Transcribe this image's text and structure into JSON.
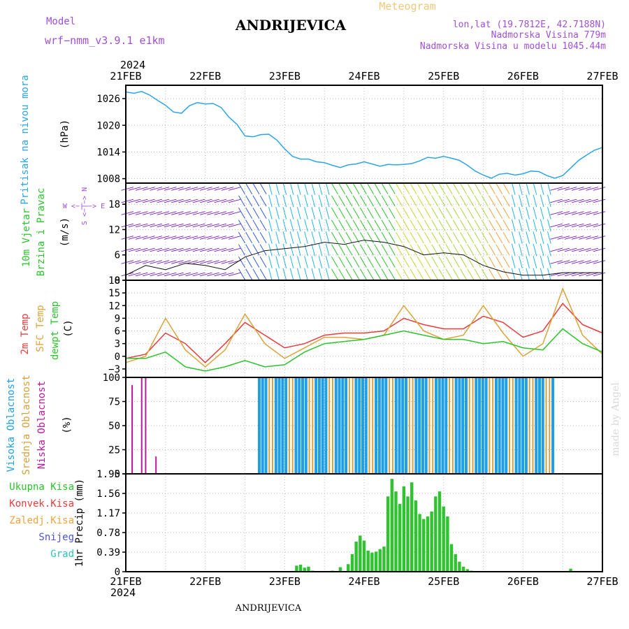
{
  "header": {
    "model_label": "Model",
    "model_name": "wrf−nmm_v3.9.1  e1km",
    "station": "ANDRIJEVICA",
    "meteogram": "Meteogram",
    "coords": "lon,lat (19.7812E, 42.7188N)",
    "elevation": "Nadmorska Visina 779m",
    "model_elevation": "Nadmorska Visina u modelu 1045.44m",
    "footer_station": "ANDRIJEVICA",
    "made_by": "made by Angel",
    "year_top": "2024",
    "year_bottom": "2024"
  },
  "colors": {
    "pressure": "#2aa6e6",
    "temp2m": "#e83c3c",
    "sfc": "#dba43a",
    "dewpt": "#2bc42b",
    "high_cloud": "#1e9fe6",
    "mid_cloud": "#d9a03a",
    "low_cloud": "#c0179e",
    "precip": "#2fc42f",
    "label_green": "#2bc42b",
    "label_purple": "#a14fd6",
    "label_orange": "#f2a23c"
  },
  "x_ticks": [
    "21FEB",
    "22FEB",
    "23FEB",
    "24FEB",
    "25FEB",
    "26FEB",
    "27FEB"
  ],
  "panels": {
    "pressure": {
      "label": "Pritisak na nivou mora",
      "unit": "(hPa)",
      "ticks": [
        "1008",
        "1014",
        "1020",
        "1026"
      ]
    },
    "wind": {
      "label1": "10m Vjetar",
      "label2": "Brzina i Pravac",
      "unit": "(m/s)",
      "ticks": [
        "0",
        "6",
        "12",
        "18"
      ],
      "compass": "W  <−| −>  E",
      "compass_v": "S <−|−> N"
    },
    "temp": {
      "label1": "2m Temp",
      "label2": "SFC Temp",
      "label3": "dewpt Temp",
      "unit": "(C)",
      "ticks": [
        "−3",
        "0",
        "3",
        "6",
        "9",
        "12",
        "15",
        "18"
      ]
    },
    "cloud": {
      "label1": "Visoka Oblacnost",
      "label2": "Srednja Oblacnost",
      "label3": "Niska Oblacnost",
      "unit": "(%)",
      "ticks": [
        "0",
        "25",
        "50",
        "75",
        "100"
      ]
    },
    "precip": {
      "legend": [
        "Ukupna Kisa",
        "Konvek.Kisa",
        "Zaledj.Kisa",
        "Snijeg",
        "Grad"
      ],
      "unit": "1hr Precip (mm)",
      "ticks": [
        "0",
        "0.39",
        "0.78",
        "1.17",
        "1.56",
        "1.95"
      ]
    }
  },
  "chart_data": [
    {
      "type": "line",
      "title": "Pritisak na nivou mora",
      "ylabel": "(hPa)",
      "ylim": [
        1007,
        1029
      ],
      "x_days": [
        0,
        0.1,
        0.2,
        0.3,
        0.4,
        0.5,
        0.6,
        0.7,
        0.8,
        0.9,
        1.0,
        1.1,
        1.2,
        1.3,
        1.4,
        1.5,
        1.6,
        1.7,
        1.8,
        1.9,
        2.0,
        2.1,
        2.2,
        2.3,
        2.4,
        2.5,
        2.6,
        2.7,
        2.8,
        2.9,
        3.0,
        3.1,
        3.2,
        3.3,
        3.4,
        3.5,
        3.6,
        3.7,
        3.8,
        3.9,
        4.0,
        4.1,
        4.2,
        4.3,
        4.4,
        4.5,
        4.6,
        4.7,
        4.8,
        4.9,
        5.0,
        5.1,
        5.2,
        5.3,
        5.4,
        5.5,
        5.6,
        5.7,
        5.8,
        5.9,
        6.0
      ],
      "series": [
        {
          "name": "Pritisak",
          "values": [
            1027.5,
            1027.2,
            1027.6,
            1026.8,
            1025.6,
            1024.5,
            1023.0,
            1022.7,
            1024.4,
            1025.1,
            1024.8,
            1024.9,
            1024.0,
            1021.8,
            1020.2,
            1017.6,
            1017.4,
            1017.9,
            1018.0,
            1016.7,
            1014.7,
            1013.0,
            1012.4,
            1012.4,
            1011.8,
            1011.6,
            1011.0,
            1010.5,
            1011.1,
            1011.3,
            1011.8,
            1011.3,
            1010.8,
            1011.2,
            1011.1,
            1011.2,
            1011.4,
            1012.0,
            1012.8,
            1012.6,
            1013.0,
            1012.6,
            1012.1,
            1011.0,
            1009.7,
            1008.8,
            1008.1,
            1009.0,
            1009.2,
            1008.8,
            1009.1,
            1009.7,
            1009.6,
            1008.7,
            1008.1,
            1008.7,
            1010.4,
            1012.1,
            1013.3,
            1014.4,
            1015.0
          ]
        }
      ]
    },
    {
      "type": "line",
      "title": "10m Vjetar Brzina i Pravac",
      "ylabel": "(m/s)",
      "ylim": [
        0,
        23
      ],
      "x_days": [
        0,
        0.25,
        0.5,
        0.75,
        1.0,
        1.25,
        1.5,
        1.75,
        2.0,
        2.25,
        2.5,
        2.75,
        3.0,
        3.25,
        3.5,
        3.75,
        4.0,
        4.25,
        4.5,
        4.75,
        5.0,
        5.25,
        5.5,
        5.75,
        6.0
      ],
      "series": [
        {
          "name": "speed",
          "values": [
            1.2,
            3.5,
            2.5,
            4.0,
            3.5,
            2.5,
            5.5,
            7.0,
            7.5,
            8.0,
            9.0,
            8.5,
            9.5,
            9.0,
            8.0,
            6.0,
            6.5,
            6.0,
            3.5,
            2.0,
            1.2,
            1.2,
            1.8,
            1.8,
            1.8
          ]
        }
      ]
    },
    {
      "type": "line",
      "title": "2m Temp / SFC Temp / dewpt Temp",
      "ylabel": "(C)",
      "ylim": [
        -5,
        18
      ],
      "x_days": [
        0,
        0.25,
        0.5,
        0.75,
        1.0,
        1.25,
        1.5,
        1.75,
        2.0,
        2.25,
        2.5,
        2.75,
        3.0,
        3.25,
        3.5,
        3.75,
        4.0,
        4.25,
        4.5,
        4.75,
        5.0,
        5.25,
        5.5,
        5.75,
        6.0
      ],
      "series": [
        {
          "name": "2m Temp",
          "values": [
            -0.5,
            0.5,
            5.5,
            3.0,
            -1.5,
            3.0,
            8.0,
            5.0,
            2.0,
            3.0,
            5.0,
            5.5,
            5.5,
            6.0,
            9.0,
            7.5,
            6.5,
            6.5,
            9.5,
            8.0,
            4.5,
            6.0,
            12.5,
            7.5,
            5.5
          ]
        },
        {
          "name": "SFC Temp",
          "values": [
            -1.5,
            0.0,
            9.0,
            1.5,
            -2.5,
            1.5,
            10.0,
            3.0,
            -0.5,
            2.0,
            4.5,
            4.5,
            4.0,
            5.0,
            12.0,
            6.0,
            4.0,
            5.0,
            12.0,
            5.5,
            0.0,
            3.0,
            16.0,
            5.0,
            0.5
          ]
        },
        {
          "name": "dewpt Temp",
          "values": [
            -0.5,
            -0.5,
            1.0,
            -2.5,
            -3.5,
            -2.5,
            -1.0,
            -2.5,
            -2.0,
            1.0,
            3.0,
            3.5,
            4.0,
            5.0,
            6.0,
            5.0,
            4.0,
            4.0,
            3.0,
            3.5,
            2.0,
            1.5,
            6.5,
            3.0,
            1.0
          ]
        }
      ]
    },
    {
      "type": "bar",
      "title": "Oblacnost",
      "ylabel": "(%)",
      "ylim": [
        0,
        100
      ],
      "series": [
        {
          "name": "Visoka Oblacnost",
          "x_days": [
            1.6,
            2.0,
            2.5,
            3.0,
            3.5,
            4.0,
            4.5,
            5.0,
            5.5,
            6.0
          ],
          "values": [
            0,
            0,
            0,
            100,
            100,
            100,
            100,
            100,
            0,
            0
          ]
        },
        {
          "name": "Srednja Oblacnost",
          "x_days": [
            1.6,
            2.0,
            2.5,
            3.0,
            3.5,
            4.0,
            4.5,
            5.0,
            5.5,
            6.0
          ],
          "values": [
            0,
            0,
            0,
            100,
            100,
            100,
            100,
            90,
            12,
            0
          ]
        },
        {
          "name": "Niska Oblacnost",
          "x_days": [
            0.08,
            0.2,
            0.25,
            0.38
          ],
          "values": [
            92,
            100,
            100,
            18
          ]
        }
      ]
    },
    {
      "type": "bar",
      "title": "1hr Precip",
      "ylabel": "1hr Precip (mm)",
      "ylim": [
        0,
        1.95
      ],
      "x_days": [
        2.15,
        2.2,
        2.25,
        2.3,
        2.35,
        2.6,
        2.7,
        2.8,
        2.85,
        2.9,
        2.95,
        3.0,
        3.05,
        3.1,
        3.15,
        3.2,
        3.25,
        3.3,
        3.35,
        3.4,
        3.45,
        3.5,
        3.55,
        3.6,
        3.65,
        3.7,
        3.75,
        3.8,
        3.85,
        3.9,
        3.95,
        4.0,
        4.05,
        4.1,
        4.15,
        4.2,
        4.25,
        4.3,
        4.35,
        5.6
      ],
      "values": [
        0.12,
        0.14,
        0.08,
        0.1,
        0.02,
        0.02,
        0.09,
        0.15,
        0.35,
        0.6,
        0.72,
        0.62,
        0.42,
        0.38,
        0.4,
        0.45,
        0.5,
        1.5,
        1.85,
        1.6,
        1.35,
        1.7,
        1.5,
        1.78,
        1.42,
        1.15,
        1.05,
        1.1,
        1.2,
        1.5,
        1.6,
        1.3,
        1.1,
        0.55,
        0.35,
        0.2,
        0.1,
        0.05,
        0.02,
        0.06
      ]
    }
  ]
}
